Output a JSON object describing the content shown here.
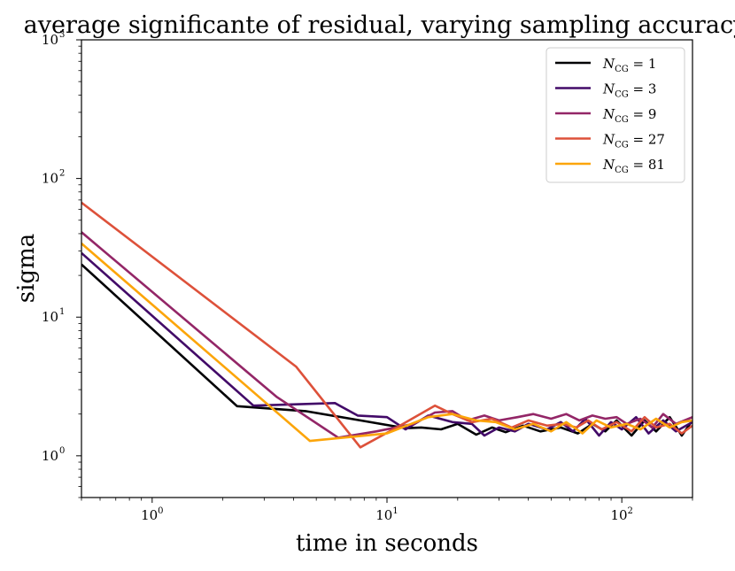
{
  "chart_data": {
    "type": "line",
    "title": "average significante of residual, varying sampling accuracy",
    "xlabel": "time in seconds",
    "ylabel": "sigma",
    "xscale": "log",
    "yscale": "log",
    "xlim": [
      0.5,
      200
    ],
    "ylim": [
      0.5,
      1000
    ],
    "x_ticks": [
      {
        "value": 1,
        "base": "10",
        "exp": "0"
      },
      {
        "value": 10,
        "base": "10",
        "exp": "1"
      },
      {
        "value": 100,
        "base": "10",
        "exp": "2"
      }
    ],
    "y_ticks": [
      {
        "value": 1,
        "base": "10",
        "exp": "0"
      },
      {
        "value": 10,
        "base": "10",
        "exp": "1"
      },
      {
        "value": 100,
        "base": "10",
        "exp": "2"
      },
      {
        "value": 1000,
        "base": "10",
        "exp": "3"
      }
    ],
    "legend_position": "top-right",
    "series": [
      {
        "name": "N_CG = 1",
        "label_main": "N",
        "label_sub": "CG",
        "label_rest": " = 1",
        "color": "#000004",
        "x": [
          0.5,
          2.3,
          4.5,
          8,
          12,
          14,
          17,
          20,
          24,
          28,
          32,
          38,
          45,
          55,
          65,
          75,
          85,
          95,
          110,
          125,
          140,
          160,
          180,
          200
        ],
        "y": [
          24,
          2.28,
          2.1,
          1.78,
          1.58,
          1.6,
          1.55,
          1.7,
          1.42,
          1.6,
          1.48,
          1.65,
          1.5,
          1.6,
          1.45,
          1.7,
          1.5,
          1.8,
          1.4,
          1.8,
          1.5,
          1.9,
          1.4,
          1.8
        ]
      },
      {
        "name": "N_CG = 3",
        "label_main": "N",
        "label_sub": "CG",
        "label_rest": " = 3",
        "color": "#420a68",
        "x": [
          0.5,
          2.7,
          6,
          7.5,
          10,
          12,
          15,
          19,
          23,
          26,
          30,
          35,
          40,
          48,
          55,
          62,
          70,
          80,
          90,
          100,
          115,
          130,
          150,
          170,
          200
        ],
        "y": [
          29,
          2.3,
          2.4,
          1.95,
          1.9,
          1.55,
          1.95,
          1.75,
          1.7,
          1.4,
          1.6,
          1.5,
          1.7,
          1.55,
          1.75,
          1.5,
          1.85,
          1.4,
          1.75,
          1.55,
          1.9,
          1.45,
          1.8,
          1.5,
          1.75
        ]
      },
      {
        "name": "N_CG = 9",
        "label_main": "N",
        "label_sub": "CG",
        "label_rest": " = 9",
        "color": "#932667",
        "x": [
          0.5,
          3.4,
          6.2,
          9,
          13,
          16,
          19,
          22,
          26,
          30,
          36,
          42,
          50,
          58,
          66,
          75,
          85,
          95,
          105,
          120,
          135,
          150,
          170,
          200
        ],
        "y": [
          41,
          2.65,
          1.35,
          1.5,
          1.7,
          2.05,
          2.1,
          1.8,
          1.95,
          1.8,
          1.9,
          2.0,
          1.85,
          2.0,
          1.8,
          1.95,
          1.85,
          1.9,
          1.7,
          1.85,
          1.6,
          2.0,
          1.7,
          1.9
        ]
      },
      {
        "name": "N_CG = 27",
        "label_main": "N",
        "label_sub": "CG",
        "label_rest": " = 27",
        "color": "#dd513a",
        "x": [
          0.5,
          4.1,
          7.7,
          11,
          16,
          19,
          23,
          28,
          34,
          40,
          48,
          56,
          64,
          72,
          82,
          95,
          110,
          125,
          140,
          160,
          180,
          200
        ],
        "y": [
          67,
          4.4,
          1.15,
          1.6,
          2.3,
          2.0,
          1.75,
          1.85,
          1.6,
          1.8,
          1.65,
          1.7,
          1.6,
          1.8,
          1.55,
          1.75,
          1.5,
          1.9,
          1.6,
          1.7,
          1.45,
          1.65
        ]
      },
      {
        "name": "N_CG = 81",
        "label_main": "N",
        "label_sub": "CG",
        "label_rest": " = 81",
        "color": "#fca50a",
        "x": [
          0.5,
          4.7,
          10,
          15,
          19,
          24,
          29,
          35,
          42,
          50,
          58,
          68,
          78,
          90,
          105,
          120,
          140,
          160,
          180,
          200
        ],
        "y": [
          34,
          1.28,
          1.45,
          1.9,
          2.0,
          1.8,
          1.75,
          1.55,
          1.7,
          1.5,
          1.75,
          1.45,
          1.8,
          1.6,
          1.7,
          1.55,
          1.85,
          1.6,
          1.75,
          1.8
        ]
      }
    ]
  }
}
